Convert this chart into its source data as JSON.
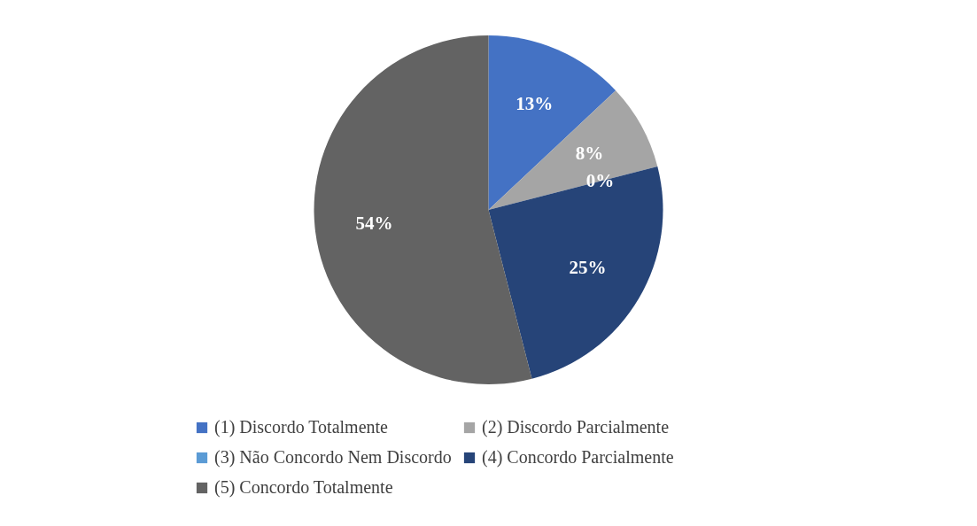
{
  "chart_data": {
    "type": "pie",
    "categories": [
      "(1) Discordo Totalmente",
      "(2) Discordo Parcialmente",
      "(3) Não Concordo Nem Discordo",
      "(4) Concordo Parcialmente",
      "(5) Concordo Totalmente"
    ],
    "values": [
      13,
      8,
      0,
      25,
      54
    ],
    "value_labels": [
      "13%",
      "8%",
      "0%",
      "25%",
      "54%"
    ],
    "colors": [
      "#4472c4",
      "#a5a5a5",
      "#5b9bd5",
      "#264478",
      "#636363"
    ],
    "legend": "bottom"
  }
}
